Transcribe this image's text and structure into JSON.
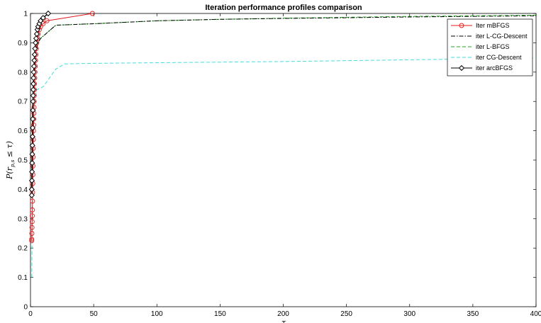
{
  "chart_data": {
    "type": "line",
    "title": "Iteration performance profiles comparison",
    "ylabel": "P(r_{p,s} ≤ τ)",
    "ylabel_parts": {
      "prefix": "P(r",
      "subscript": "p,s",
      "suffix": " ≤ τ)"
    },
    "xlabel": "τ",
    "xlim": [
      0,
      400
    ],
    "ylim": [
      0,
      1
    ],
    "xticks": [
      0,
      50,
      100,
      150,
      200,
      250,
      300,
      350,
      400
    ],
    "yticks": [
      0,
      0.1,
      0.2,
      0.3,
      0.4,
      0.5,
      0.6,
      0.7,
      0.8,
      0.9,
      1
    ],
    "grid": false,
    "legend_position": "top-right",
    "series": [
      {
        "name": "Iter mBFGS",
        "color": "#e8181a",
        "dash": "solid",
        "marker": "circle",
        "x": [
          1,
          1,
          1.1,
          1.2,
          1.3,
          1.4,
          1.5,
          1.6,
          1.7,
          1.8,
          1.9,
          2,
          2.1,
          2.2,
          2.3,
          2.4,
          2.5,
          2.6,
          2.7,
          2.8,
          2.9,
          3,
          3.1,
          3.2,
          3.4,
          3.6,
          3.8,
          4,
          4.3,
          4.6,
          5,
          5.5,
          6,
          7,
          8,
          10,
          13,
          49
        ],
        "y": [
          0.225,
          0.23,
          0.25,
          0.27,
          0.29,
          0.31,
          0.33,
          0.36,
          0.39,
          0.42,
          0.45,
          0.48,
          0.51,
          0.54,
          0.57,
          0.6,
          0.62,
          0.64,
          0.66,
          0.68,
          0.7,
          0.72,
          0.74,
          0.76,
          0.78,
          0.8,
          0.82,
          0.84,
          0.86,
          0.88,
          0.9,
          0.915,
          0.93,
          0.945,
          0.955,
          0.965,
          0.975,
          1.0
        ]
      },
      {
        "name": "iter L-CG-Descent",
        "color": "#000000",
        "dash": "dashdot",
        "marker": "none",
        "x": [
          1,
          1.2,
          1.5,
          2,
          3,
          4,
          6,
          8,
          12,
          20,
          50,
          100,
          150,
          200,
          300,
          400
        ],
        "y": [
          0.38,
          0.5,
          0.62,
          0.72,
          0.8,
          0.86,
          0.9,
          0.915,
          0.93,
          0.96,
          0.965,
          0.975,
          0.98,
          0.983,
          0.988,
          0.992
        ]
      },
      {
        "name": "iter L-BFGS",
        "color": "#1fa91f",
        "dash": "dashed",
        "marker": "none",
        "x": [
          1,
          1.2,
          1.5,
          2,
          3,
          4,
          6,
          8,
          12,
          20,
          50,
          100,
          150,
          200,
          300,
          400
        ],
        "y": [
          0.43,
          0.55,
          0.65,
          0.74,
          0.82,
          0.87,
          0.9,
          0.915,
          0.93,
          0.96,
          0.965,
          0.975,
          0.98,
          0.984,
          0.99,
          0.994
        ]
      },
      {
        "name": "iter CG-Descent",
        "color": "#3ddede",
        "dash": "dashed",
        "marker": "none",
        "x": [
          1,
          1.2,
          1.5,
          2,
          2.5,
          3,
          5,
          10,
          15,
          20,
          27,
          50,
          100,
          200,
          300,
          400
        ],
        "y": [
          0.1,
          0.2,
          0.4,
          0.55,
          0.65,
          0.7,
          0.74,
          0.75,
          0.78,
          0.81,
          0.828,
          0.83,
          0.832,
          0.836,
          0.842,
          0.848
        ]
      },
      {
        "name": "iter arcBFGS",
        "color": "#000000",
        "dash": "solid",
        "marker": "diamond",
        "x": [
          1,
          1,
          1.1,
          1.2,
          1.3,
          1.4,
          1.5,
          1.6,
          1.7,
          1.8,
          1.9,
          2,
          2.1,
          2.2,
          2.3,
          2.4,
          2.6,
          2.8,
          3,
          3.3,
          3.6,
          4,
          4.5,
          5,
          5.5,
          6,
          7,
          8,
          10,
          14
        ],
        "y": [
          0.38,
          0.4,
          0.43,
          0.46,
          0.49,
          0.52,
          0.55,
          0.58,
          0.61,
          0.64,
          0.67,
          0.7,
          0.72,
          0.74,
          0.76,
          0.78,
          0.8,
          0.82,
          0.84,
          0.86,
          0.88,
          0.9,
          0.915,
          0.93,
          0.945,
          0.955,
          0.965,
          0.975,
          0.985,
          1.0
        ]
      }
    ]
  }
}
